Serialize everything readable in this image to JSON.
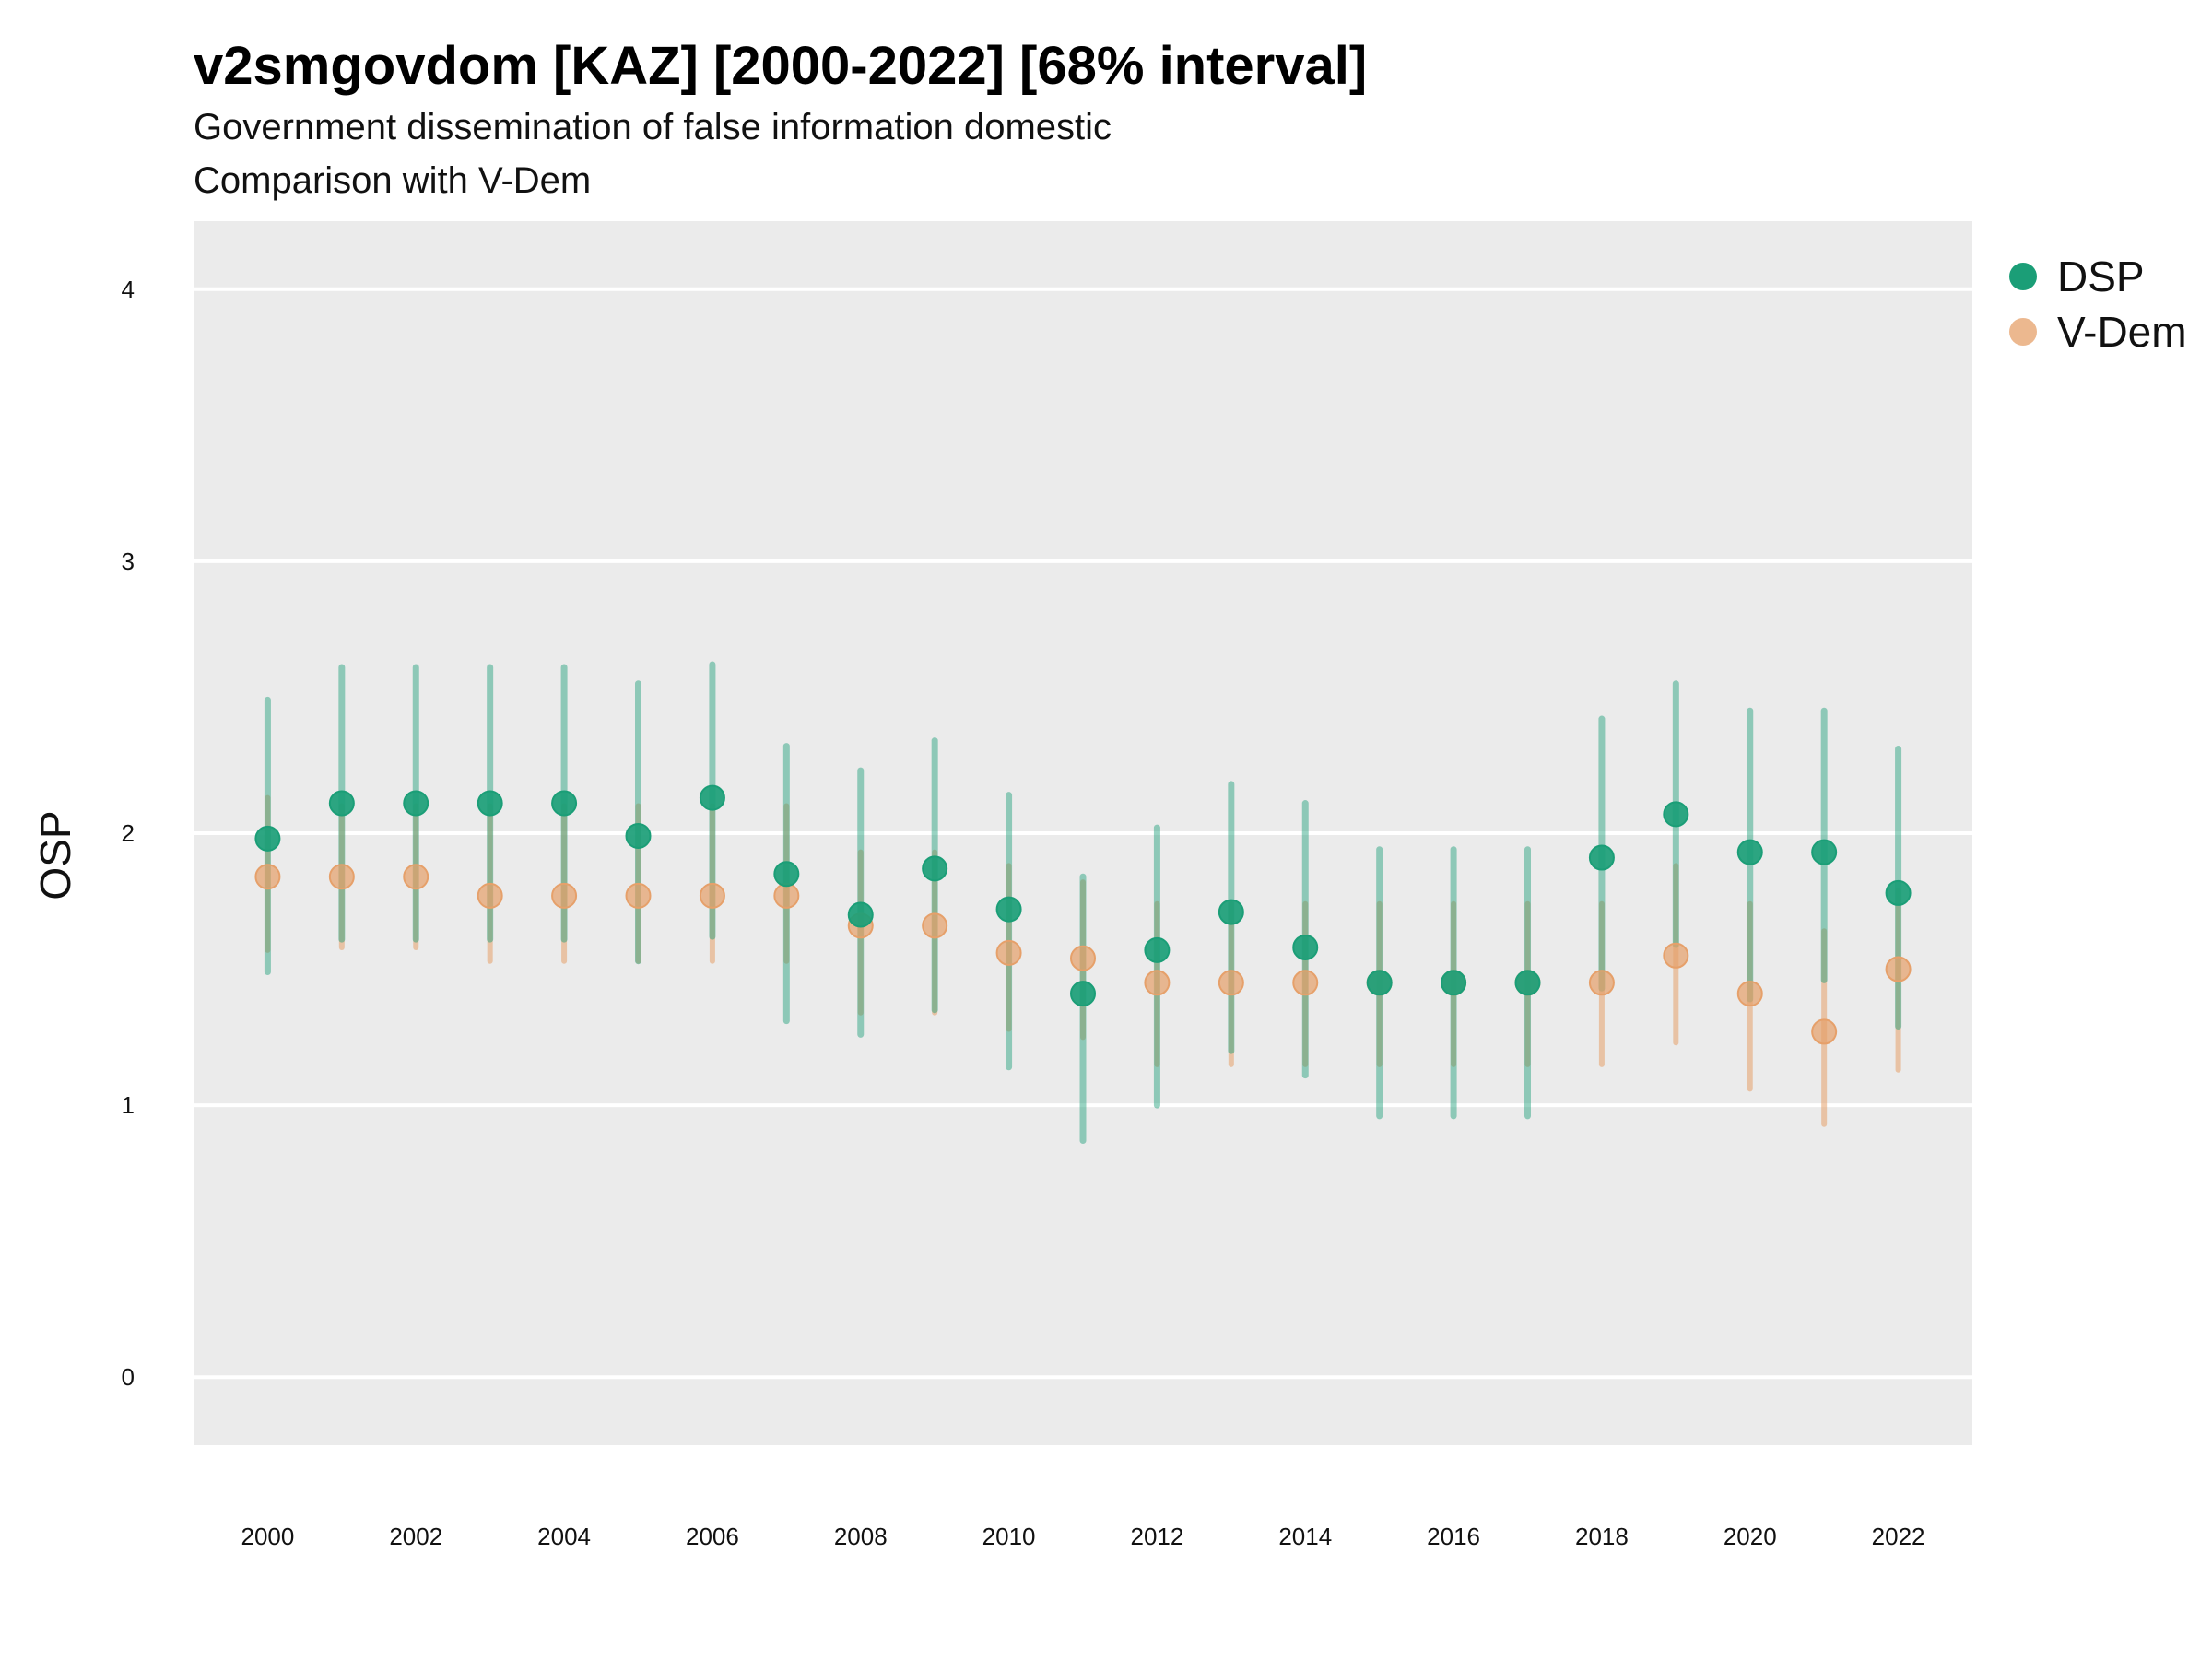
{
  "chart_data": {
    "type": "scatter",
    "title": "v2smgovdom [KAZ] [2000-2022] [68% interval]",
    "subtitle_lines": [
      "Government dissemination of false information domestic",
      "Comparison with V-Dem"
    ],
    "xlabel": "",
    "ylabel": "OSP",
    "x": [
      2000,
      2001,
      2002,
      2003,
      2004,
      2005,
      2006,
      2007,
      2008,
      2009,
      2010,
      2011,
      2012,
      2013,
      2014,
      2015,
      2016,
      2017,
      2018,
      2019,
      2020,
      2021,
      2022
    ],
    "x_tick_labels": [
      "2000",
      "2002",
      "2004",
      "2006",
      "2008",
      "2010",
      "2012",
      "2014",
      "2016",
      "2018",
      "2020",
      "2022"
    ],
    "y_tick_labels": [
      "0",
      "1",
      "2",
      "3",
      "4"
    ],
    "ylim": [
      -0.25,
      4.25
    ],
    "xlim": [
      1999,
      2023
    ],
    "grid": true,
    "legend_position": "right",
    "series": [
      {
        "name": "DSP",
        "color": "#1b9e77",
        "values": [
          1.98,
          2.11,
          2.11,
          2.11,
          2.11,
          1.99,
          2.13,
          1.85,
          1.7,
          1.87,
          1.72,
          1.41,
          1.57,
          1.71,
          1.58,
          1.45,
          1.45,
          1.45,
          1.91,
          2.07,
          1.93,
          1.93,
          1.78
        ],
        "lower": [
          1.49,
          1.61,
          1.61,
          1.61,
          1.61,
          1.53,
          1.62,
          1.31,
          1.26,
          1.35,
          1.14,
          0.87,
          1.0,
          1.2,
          1.11,
          0.96,
          0.96,
          0.96,
          1.43,
          1.59,
          1.39,
          1.46,
          1.29
        ],
        "upper": [
          2.49,
          2.61,
          2.61,
          2.61,
          2.61,
          2.55,
          2.62,
          2.32,
          2.23,
          2.34,
          2.14,
          1.84,
          2.02,
          2.18,
          2.11,
          1.94,
          1.94,
          1.94,
          2.42,
          2.55,
          2.45,
          2.45,
          2.31
        ]
      },
      {
        "name": "V-Dem",
        "color": "#e6a06a",
        "values": [
          1.84,
          1.84,
          1.84,
          1.77,
          1.77,
          1.77,
          1.77,
          1.77,
          1.66,
          1.66,
          1.56,
          1.54,
          1.45,
          1.45,
          1.45,
          1.45,
          1.45,
          1.45,
          1.45,
          1.55,
          1.41,
          1.27,
          1.5
        ],
        "lower": [
          1.57,
          1.58,
          1.58,
          1.53,
          1.53,
          1.53,
          1.53,
          1.53,
          1.34,
          1.34,
          1.28,
          1.25,
          1.15,
          1.15,
          1.15,
          1.15,
          1.15,
          1.15,
          1.15,
          1.23,
          1.06,
          0.93,
          1.13
        ],
        "upper": [
          2.13,
          2.1,
          2.1,
          2.1,
          2.1,
          2.1,
          2.1,
          2.1,
          1.93,
          1.93,
          1.88,
          1.82,
          1.74,
          1.74,
          1.74,
          1.74,
          1.74,
          1.74,
          1.74,
          1.88,
          1.74,
          1.64,
          1.79
        ]
      }
    ]
  }
}
